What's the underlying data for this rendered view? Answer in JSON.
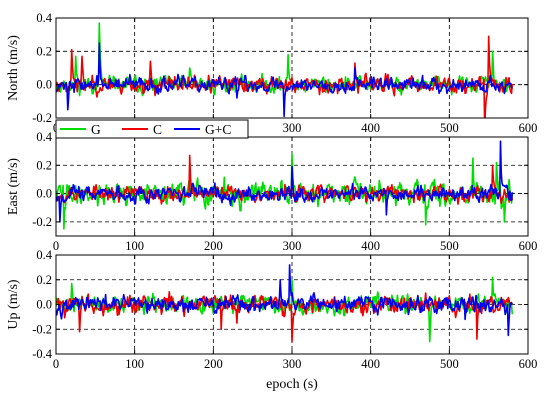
{
  "colors": {
    "G": "#00dd00",
    "C": "#ee0000",
    "G+C": "#0000ee",
    "grid": "#000000"
  },
  "chart_data": [
    {
      "type": "line",
      "ylabel": "North (m/s)",
      "xlabel": "",
      "xlim": [
        0,
        600
      ],
      "ylim": [
        -0.2,
        0.4
      ],
      "xticks": [
        0,
        100,
        200,
        300,
        400,
        500,
        600
      ],
      "yticks": [
        -0.2,
        0.0,
        0.2,
        0.4
      ],
      "ytick_labels": [
        "-0.2",
        "0.0",
        "0.2",
        "0.4"
      ],
      "grid": "dashed",
      "series": [
        {
          "name": "G",
          "amp": 0.045,
          "seed": 11,
          "spikes": [
            [
              55,
              0.37
            ],
            [
              25,
              0.17
            ],
            [
              170,
              0.1
            ],
            [
              295,
              0.18
            ],
            [
              555,
              0.2
            ]
          ]
        },
        {
          "name": "C",
          "amp": 0.045,
          "seed": 23,
          "spikes": [
            [
              20,
              0.21
            ],
            [
              33,
              0.17
            ],
            [
              120,
              0.14
            ],
            [
              550,
              0.29
            ],
            [
              545,
              -0.26
            ],
            [
              380,
              0.13
            ]
          ]
        },
        {
          "name": "G+C",
          "amp": 0.04,
          "seed": 37,
          "spikes": [
            [
              55,
              0.25
            ],
            [
              15,
              -0.15
            ],
            [
              290,
              -0.19
            ],
            [
              380,
              0.1
            ],
            [
              230,
              -0.08
            ]
          ]
        }
      ]
    },
    {
      "type": "line",
      "ylabel": "East (m/s)",
      "xlabel": "",
      "xlim": [
        0,
        600
      ],
      "ylim": [
        -0.3,
        0.4
      ],
      "xticks": [
        0,
        100,
        200,
        300,
        400,
        500,
        600
      ],
      "yticks": [
        -0.2,
        0.0,
        0.2,
        0.4
      ],
      "ytick_labels": [
        "-0.2",
        "0.0",
        "0.2",
        "0.4"
      ],
      "grid": "dashed",
      "legend": {
        "position": "top-left",
        "entries": [
          "G",
          "C",
          "G+C"
        ]
      },
      "series": [
        {
          "name": "G",
          "amp": 0.075,
          "seed": 41,
          "spikes": [
            [
              10,
              -0.25
            ],
            [
              300,
              0.28
            ],
            [
              470,
              -0.22
            ],
            [
              530,
              0.25
            ],
            [
              570,
              -0.2
            ],
            [
              560,
              0.22
            ]
          ]
        },
        {
          "name": "C",
          "amp": 0.05,
          "seed": 53,
          "spikes": [
            [
              170,
              0.27
            ],
            [
              300,
              0.15
            ],
            [
              555,
              0.2
            ]
          ]
        },
        {
          "name": "G+C",
          "amp": 0.05,
          "seed": 67,
          "spikes": [
            [
              565,
              0.37
            ],
            [
              300,
              0.19
            ],
            [
              5,
              -0.2
            ],
            [
              420,
              -0.15
            ]
          ]
        }
      ]
    },
    {
      "type": "line",
      "ylabel": "Up (m/s)",
      "xlabel": "epoch (s)",
      "xlim": [
        0,
        600
      ],
      "ylim": [
        -0.4,
        0.4
      ],
      "xticks": [
        0,
        100,
        200,
        300,
        400,
        500,
        600
      ],
      "yticks": [
        -0.4,
        -0.2,
        0.0,
        0.2,
        0.4
      ],
      "ytick_labels": [
        "-0.4",
        "-0.2",
        "0.0",
        "0.2",
        "0.4"
      ],
      "grid": "dashed",
      "series": [
        {
          "name": "G",
          "amp": 0.065,
          "seed": 71,
          "spikes": [
            [
              475,
              -0.3
            ],
            [
              555,
              0.22
            ],
            [
              20,
              0.17
            ],
            [
              300,
              0.2
            ]
          ]
        },
        {
          "name": "C",
          "amp": 0.065,
          "seed": 83,
          "spikes": [
            [
              300,
              -0.3
            ],
            [
              210,
              -0.2
            ],
            [
              230,
              -0.15
            ],
            [
              535,
              -0.28
            ],
            [
              30,
              -0.22
            ]
          ]
        },
        {
          "name": "G+C",
          "amp": 0.06,
          "seed": 97,
          "spikes": [
            [
              297,
              0.32
            ],
            [
              575,
              -0.25
            ],
            [
              285,
              0.2
            ],
            [
              520,
              -0.12
            ]
          ]
        }
      ]
    }
  ]
}
